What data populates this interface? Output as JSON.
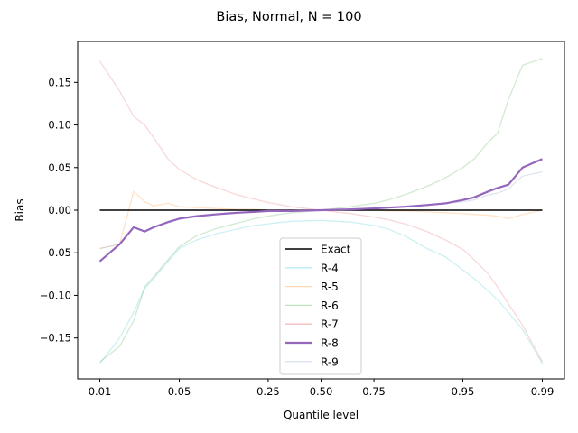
{
  "chart_data": {
    "type": "line",
    "title": "Bias, Normal, N = 100",
    "xlabel": "Quantile level",
    "ylabel": "Bias",
    "xticks": [
      "0.01",
      "0.05",
      "0.25",
      "0.50",
      "0.75",
      "0.95",
      "0.99"
    ],
    "xtick_values": [
      0.01,
      0.05,
      0.25,
      0.5,
      0.75,
      0.95,
      0.99
    ],
    "yticks": [
      "0.15",
      "0.10",
      "0.05",
      "0.00",
      "−0.05",
      "−0.10",
      "−0.15"
    ],
    "ytick_values": [
      0.15,
      0.1,
      0.05,
      0.0,
      -0.05,
      -0.1,
      -0.15
    ],
    "ylim": [
      -0.198,
      0.198
    ],
    "x_axis_scale": "logit",
    "grid": false,
    "legend_placement": "lower center",
    "x": [
      0.01,
      0.015,
      0.02,
      0.025,
      0.03,
      0.04,
      0.05,
      0.07,
      0.1,
      0.15,
      0.2,
      0.25,
      0.35,
      0.5,
      0.65,
      0.75,
      0.8,
      0.85,
      0.9,
      0.93,
      0.95,
      0.96,
      0.97,
      0.975,
      0.98,
      0.985,
      0.99
    ],
    "series": [
      {
        "name": "Exact",
        "color": "#000000",
        "opacity": 1.0,
        "width": 1.6,
        "values": [
          0.0,
          0.0,
          0.0,
          0.0,
          0.0,
          0.0,
          0.0,
          0.0,
          0.0,
          0.0,
          0.0,
          0.0,
          0.0,
          0.0,
          0.0,
          0.0,
          0.0,
          0.0,
          0.0,
          0.0,
          0.0,
          0.0,
          0.0,
          0.0,
          0.0,
          0.0,
          0.0
        ]
      },
      {
        "name": "R-4",
        "color": "#17becf",
        "opacity": 0.22,
        "width": 1.3,
        "values": [
          -0.18,
          -0.15,
          -0.12,
          -0.092,
          -0.08,
          -0.06,
          -0.045,
          -0.035,
          -0.028,
          -0.022,
          -0.018,
          -0.016,
          -0.013,
          -0.012,
          -0.014,
          -0.018,
          -0.022,
          -0.03,
          -0.045,
          -0.055,
          -0.07,
          -0.08,
          -0.095,
          -0.105,
          -0.12,
          -0.14,
          -0.18
        ]
      },
      {
        "name": "R-5",
        "color": "#ff7f0e",
        "opacity": 0.22,
        "width": 1.3,
        "values": [
          -0.045,
          -0.04,
          0.022,
          0.01,
          0.005,
          0.008,
          0.004,
          0.003,
          0.002,
          0.001,
          0.001,
          0.0,
          0.0,
          0.0,
          0.0,
          0.0,
          -0.001,
          -0.001,
          -0.002,
          -0.003,
          -0.004,
          -0.005,
          -0.006,
          -0.007,
          -0.01,
          -0.005,
          0.0
        ]
      },
      {
        "name": "R-6",
        "color": "#2ca02c",
        "opacity": 0.22,
        "width": 1.3,
        "values": [
          -0.178,
          -0.16,
          -0.13,
          -0.09,
          -0.078,
          -0.058,
          -0.043,
          -0.03,
          -0.022,
          -0.015,
          -0.01,
          -0.007,
          -0.003,
          0.0,
          0.004,
          0.008,
          0.012,
          0.018,
          0.028,
          0.038,
          0.05,
          0.06,
          0.08,
          0.09,
          0.13,
          0.17,
          0.178
        ]
      },
      {
        "name": "R-7",
        "color": "#d62728",
        "opacity": 0.18,
        "width": 1.3,
        "values": [
          0.175,
          0.14,
          0.11,
          0.1,
          0.085,
          0.06,
          0.048,
          0.036,
          0.027,
          0.018,
          0.013,
          0.009,
          0.004,
          0.0,
          -0.004,
          -0.008,
          -0.011,
          -0.016,
          -0.025,
          -0.035,
          -0.046,
          -0.058,
          -0.075,
          -0.09,
          -0.11,
          -0.135,
          -0.178
        ]
      },
      {
        "name": "R-8",
        "color": "#9467bd",
        "opacity": 1.0,
        "width": 2.2,
        "values": [
          -0.06,
          -0.04,
          -0.02,
          -0.025,
          -0.02,
          -0.014,
          -0.01,
          -0.007,
          -0.005,
          -0.003,
          -0.002,
          -0.001,
          -0.001,
          0.0,
          0.001,
          0.002,
          0.003,
          0.004,
          0.006,
          0.008,
          0.012,
          0.015,
          0.022,
          0.026,
          0.03,
          0.05,
          0.06
        ]
      },
      {
        "name": "R-9",
        "color": "#8c9fd0",
        "opacity": 0.28,
        "width": 1.3,
        "values": [
          -0.045,
          -0.04,
          -0.02,
          -0.025,
          -0.02,
          -0.013,
          -0.01,
          -0.007,
          -0.005,
          -0.003,
          -0.002,
          -0.001,
          0.0,
          0.0,
          0.001,
          0.002,
          0.003,
          0.004,
          0.006,
          0.008,
          0.01,
          0.012,
          0.018,
          0.02,
          0.025,
          0.04,
          0.045
        ]
      }
    ]
  }
}
